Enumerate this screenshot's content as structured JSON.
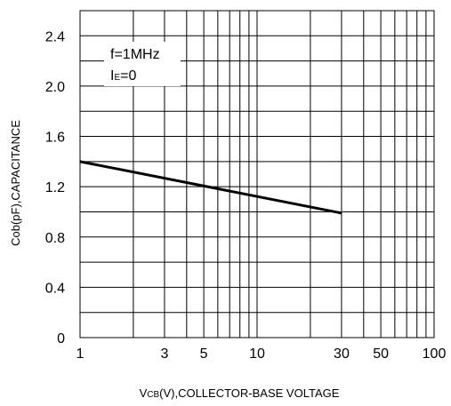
{
  "chart_data": {
    "type": "line",
    "x_scale": "log",
    "xlim": [
      1,
      100
    ],
    "ylim": [
      0,
      2.6
    ],
    "x_ticks": [
      {
        "value": 1,
        "label": "1"
      },
      {
        "value": 3,
        "label": "3"
      },
      {
        "value": 5,
        "label": "5"
      },
      {
        "value": 10,
        "label": "10"
      },
      {
        "value": 30,
        "label": "30"
      },
      {
        "value": 50,
        "label": "50"
      },
      {
        "value": 100,
        "label": "100"
      }
    ],
    "x_gridlines": [
      1,
      2,
      3,
      4,
      5,
      6,
      7,
      8,
      9,
      10,
      20,
      30,
      40,
      50,
      60,
      70,
      80,
      90,
      100
    ],
    "y_ticks": [
      {
        "value": 0,
        "label": "0"
      },
      {
        "value": 0.4,
        "label": "0.4"
      },
      {
        "value": 0.8,
        "label": "0.8"
      },
      {
        "value": 1.2,
        "label": "1.2"
      },
      {
        "value": 1.6,
        "label": "1.6"
      },
      {
        "value": 2.0,
        "label": "2.0"
      },
      {
        "value": 2.4,
        "label": "2.4"
      }
    ],
    "y_gridlines": [
      0.2,
      0.4,
      0.6,
      0.8,
      1.0,
      1.2,
      1.4,
      1.6,
      1.8,
      2.0,
      2.2,
      2.4
    ],
    "grid": true,
    "xlabel": {
      "main": "V",
      "sub": "CB",
      "rest": "(V),COLLECTOR-BASE VOLTAGE"
    },
    "ylabel": "Cob(pF),CAPACITANCE",
    "annotation": {
      "line1": "f=1MHz",
      "line2_main": "I",
      "line2_sub": "E",
      "line2_rest": "=0"
    },
    "series": [
      {
        "x": [
          1,
          30
        ],
        "y": [
          1.4,
          0.99
        ],
        "color": "#000000"
      }
    ]
  }
}
